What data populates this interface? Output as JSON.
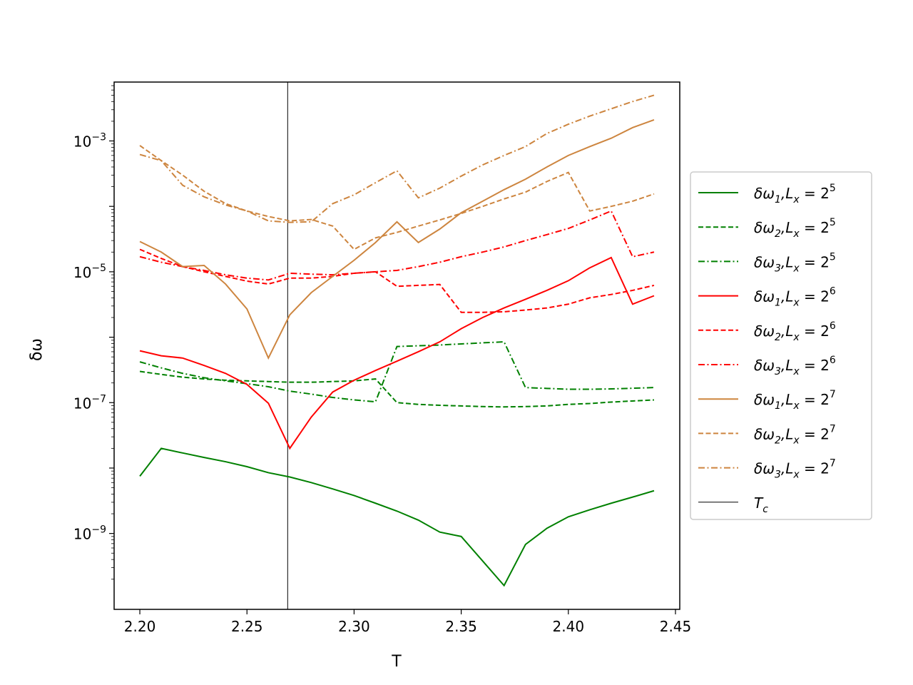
{
  "chart_data": {
    "type": "line",
    "xlabel": "T",
    "ylabel": "δω",
    "yscale": "log",
    "xlim": [
      2.188,
      2.452
    ],
    "ylim_log10": [
      -10.16,
      -2.1
    ],
    "x_ticks": [
      2.2,
      2.25,
      2.3,
      2.35,
      2.4,
      2.45
    ],
    "x_tick_labels": [
      "2.20",
      "2.25",
      "2.30",
      "2.35",
      "2.40",
      "2.45"
    ],
    "y_ticks_log10": [
      -9,
      -7,
      -5,
      -3
    ],
    "y_tick_labels": [
      "10",
      "10",
      "10",
      "10"
    ],
    "y_tick_exponents": [
      "−9",
      "−7",
      "−5",
      "−3"
    ],
    "grid": false,
    "legend_position": "right-outside",
    "vline": {
      "x": 2.269,
      "name": "Tc",
      "color": "#000000"
    },
    "x": [
      2.2,
      2.21,
      2.22,
      2.23,
      2.24,
      2.25,
      2.26,
      2.27,
      2.28,
      2.29,
      2.3,
      2.31,
      2.32,
      2.33,
      2.34,
      2.35,
      2.36,
      2.37,
      2.38,
      2.39,
      2.4,
      2.41,
      2.42,
      2.43,
      2.44
    ],
    "series": [
      {
        "name": "δω1,Lx=2^5",
        "color": "#008000",
        "dash": "solid",
        "values": [
          7.5e-09,
          2e-08,
          1.7e-08,
          1.45e-08,
          1.25e-08,
          1.05e-08,
          8.5e-09,
          7.3e-09,
          6e-09,
          4.8e-09,
          3.8e-09,
          2.9e-09,
          2.2e-09,
          1.6e-09,
          1.05e-09,
          9e-10,
          3.8e-10,
          1.6e-10,
          6.8e-10,
          1.2e-09,
          1.8e-09,
          2.3e-09,
          2.9e-09,
          3.6e-09,
          4.5e-09
        ]
      },
      {
        "name": "δω2,Lx=2^5",
        "color": "#008000",
        "dash": "dashed",
        "values": [
          3e-07,
          2.7e-07,
          2.45e-07,
          2.3e-07,
          2.2e-07,
          2.15e-07,
          2.1e-07,
          2.05e-07,
          2.05e-07,
          2.1e-07,
          2.15e-07,
          2.3e-07,
          1e-07,
          9.4e-08,
          9.1e-08,
          8.9e-08,
          8.7e-08,
          8.6e-08,
          8.7e-08,
          8.9e-08,
          9.4e-08,
          9.7e-08,
          1.02e-07,
          1.06e-07,
          1.1e-07
        ]
      },
      {
        "name": "δω3,Lx=2^5",
        "color": "#008000",
        "dash": "dashdot",
        "values": [
          4.2e-07,
          3.4e-07,
          2.8e-07,
          2.4e-07,
          2.15e-07,
          1.95e-07,
          1.75e-07,
          1.5e-07,
          1.35e-07,
          1.2e-07,
          1.1e-07,
          1.03e-07,
          7.2e-07,
          7.4e-07,
          7.6e-07,
          7.9e-07,
          8.2e-07,
          8.5e-07,
          1.7e-07,
          1.65e-07,
          1.6e-07,
          1.6e-07,
          1.62e-07,
          1.66e-07,
          1.7e-07
        ]
      },
      {
        "name": "δω1,Lx=2^6",
        "color": "#ff0000",
        "dash": "solid",
        "values": [
          6.2e-07,
          5.2e-07,
          4.8e-07,
          3.7e-07,
          2.8e-07,
          1.9e-07,
          9.8e-08,
          2e-08,
          6e-08,
          1.45e-07,
          2.2e-07,
          3.1e-07,
          4.3e-07,
          6e-07,
          8.5e-07,
          1.35e-06,
          2e-06,
          2.8e-06,
          3.8e-06,
          5.2e-06,
          7.3e-06,
          1.15e-05,
          1.65e-05,
          3.2e-06,
          4.3e-06
        ]
      },
      {
        "name": "δω2,Lx=2^6",
        "color": "#ff0000",
        "dash": "dashed",
        "values": [
          2.2e-05,
          1.6e-05,
          1.2e-05,
          1e-05,
          8.5e-06,
          7.2e-06,
          6.5e-06,
          8e-06,
          8e-06,
          8.5e-06,
          9.5e-06,
          1e-05,
          6e-06,
          6.2e-06,
          6.4e-06,
          2.4e-06,
          2.4e-06,
          2.45e-06,
          2.6e-06,
          2.8e-06,
          3.2e-06,
          4e-06,
          4.5e-06,
          5.2e-06,
          6.2e-06
        ]
      },
      {
        "name": "δω3,Lx=2^6",
        "color": "#ff0000",
        "dash": "dashdot",
        "values": [
          1.7e-05,
          1.4e-05,
          1.2e-05,
          1.05e-05,
          9e-06,
          8e-06,
          7.5e-06,
          9.5e-06,
          9.2e-06,
          9e-06,
          9.5e-06,
          1e-05,
          1.05e-05,
          1.2e-05,
          1.4e-05,
          1.7e-05,
          2e-05,
          2.4e-05,
          3e-05,
          3.7e-05,
          4.6e-05,
          6.2e-05,
          8.5e-05,
          1.7e-05,
          2e-05
        ]
      },
      {
        "name": "δω1,Lx=2^7",
        "color": "#cd853f",
        "dash": "solid",
        "values": [
          2.9e-05,
          2e-05,
          1.2e-05,
          1.25e-05,
          6.5e-06,
          2.7e-06,
          4.8e-07,
          2.2e-06,
          4.8e-06,
          8.5e-06,
          1.5e-05,
          2.8e-05,
          5.8e-05,
          2.8e-05,
          4.5e-05,
          8e-05,
          0.00012,
          0.00018,
          0.00026,
          0.0004,
          0.0006,
          0.00082,
          0.0011,
          0.0016,
          0.0021
        ]
      },
      {
        "name": "δω2,Lx=2^7",
        "color": "#cd853f",
        "dash": "dashed",
        "values": [
          0.00085,
          0.0005,
          0.0003,
          0.00017,
          0.00011,
          8.5e-05,
          7e-05,
          6e-05,
          6.3e-05,
          5e-05,
          2.2e-05,
          3.3e-05,
          4e-05,
          5e-05,
          6.2e-05,
          7.8e-05,
          0.0001,
          0.00013,
          0.000165,
          0.00024,
          0.00033,
          8.5e-05,
          0.0001,
          0.00012,
          0.000155
        ]
      },
      {
        "name": "δω3,Lx=2^7",
        "color": "#cd853f",
        "dash": "dashdot",
        "values": [
          0.00062,
          0.0005,
          0.00021,
          0.00014,
          0.000105,
          8.5e-05,
          6e-05,
          5.7e-05,
          5.8e-05,
          0.00011,
          0.00015,
          0.00023,
          0.00035,
          0.000135,
          0.00019,
          0.00029,
          0.00043,
          0.0006,
          0.00082,
          0.0013,
          0.0018,
          0.0024,
          0.0031,
          0.004,
          0.005
        ]
      }
    ],
    "legend": [
      {
        "main": "δω",
        "sub": "1",
        "mid": ",L",
        "sub2": "x",
        "eq": " = 2",
        "sup": "5",
        "color": "#008000",
        "dash": "solid"
      },
      {
        "main": "δω",
        "sub": "2",
        "mid": ",L",
        "sub2": "x",
        "eq": " = 2",
        "sup": "5",
        "color": "#008000",
        "dash": "dashed"
      },
      {
        "main": "δω",
        "sub": "3",
        "mid": ",L",
        "sub2": "x",
        "eq": " = 2",
        "sup": "5",
        "color": "#008000",
        "dash": "dashdot"
      },
      {
        "main": "δω",
        "sub": "1",
        "mid": ",L",
        "sub2": "x",
        "eq": " = 2",
        "sup": "6",
        "color": "#ff0000",
        "dash": "solid"
      },
      {
        "main": "δω",
        "sub": "2",
        "mid": ",L",
        "sub2": "x",
        "eq": " = 2",
        "sup": "6",
        "color": "#ff0000",
        "dash": "dashed"
      },
      {
        "main": "δω",
        "sub": "3",
        "mid": ",L",
        "sub2": "x",
        "eq": " = 2",
        "sup": "6",
        "color": "#ff0000",
        "dash": "dashdot"
      },
      {
        "main": "δω",
        "sub": "1",
        "mid": ",L",
        "sub2": "x",
        "eq": " = 2",
        "sup": "7",
        "color": "#cd853f",
        "dash": "solid"
      },
      {
        "main": "δω",
        "sub": "2",
        "mid": ",L",
        "sub2": "x",
        "eq": " = 2",
        "sup": "7",
        "color": "#cd853f",
        "dash": "dashed"
      },
      {
        "main": "δω",
        "sub": "3",
        "mid": ",L",
        "sub2": "x",
        "eq": " = 2",
        "sup": "7",
        "color": "#cd853f",
        "dash": "dashdot"
      },
      {
        "main": "T",
        "sub": "c",
        "mid": "",
        "sub2": "",
        "eq": "",
        "sup": "",
        "color": "#000000",
        "dash": "thin"
      }
    ]
  }
}
